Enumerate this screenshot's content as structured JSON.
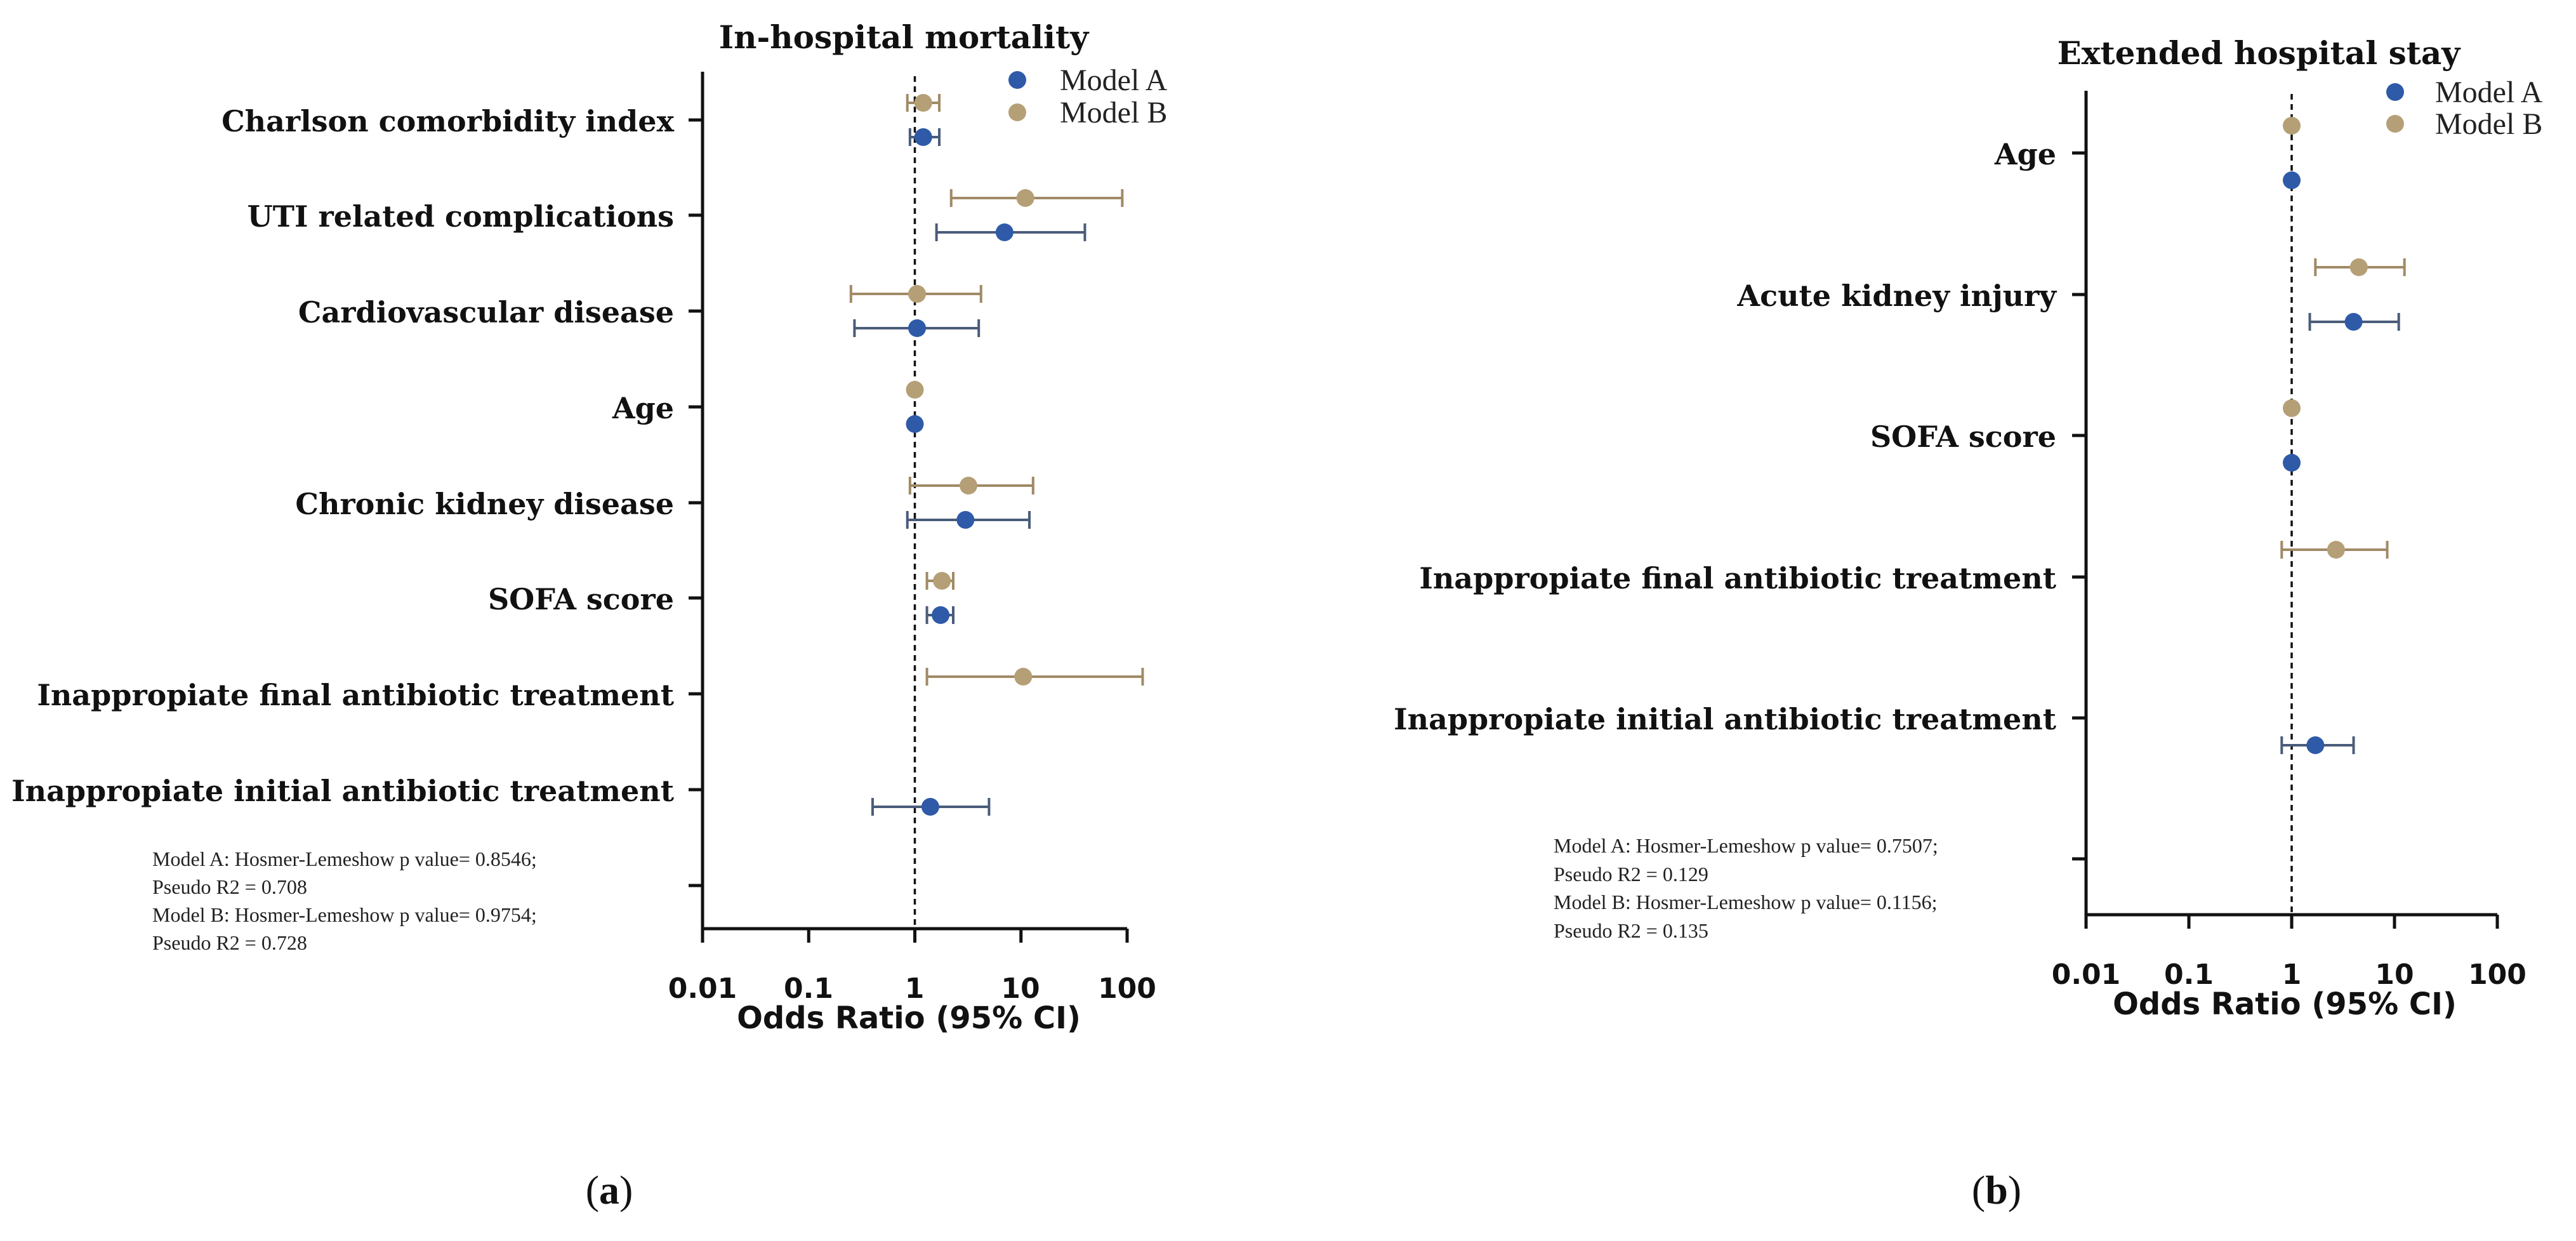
{
  "chart_data": [
    {
      "type": "forest",
      "panel_label_open": "(",
      "panel_label_letter": "a",
      "panel_label_close": ")",
      "title": "In-hospital mortality",
      "xlabel": "Odds Ratio (95% CI)",
      "x_scale": "log",
      "xlim": [
        0.01,
        100
      ],
      "x_ticks": [
        0.01,
        0.1,
        1,
        10,
        100
      ],
      "x_tick_labels": [
        "0.01",
        "0.1",
        "1",
        "10",
        "100"
      ],
      "reference_line": 1,
      "legend": [
        {
          "name": "Model A",
          "color": "#2e5aa8"
        },
        {
          "name": "Model B",
          "color": "#b59f76"
        }
      ],
      "categories": [
        "Charlson comorbidity index",
        "UTI related complications",
        "Cardiovascular disease",
        "Age",
        "Chronic kidney disease",
        "SOFA score",
        "Inappropiate final antibiotic treatment",
        "Inappropiate initial antibiotic treatment"
      ],
      "series": [
        {
          "name": "Model A",
          "color": "#2e5aa8",
          "err_color": "#4a5c7a",
          "points": [
            {
              "category": "Charlson comorbidity index",
              "or": 1.2,
              "low": 0.9,
              "high": 1.7
            },
            {
              "category": "UTI related complications",
              "or": 7.0,
              "low": 1.6,
              "high": 40.0
            },
            {
              "category": "Cardiovascular disease",
              "or": 1.05,
              "low": 0.27,
              "high": 4.0
            },
            {
              "category": "Age",
              "or": 1.0,
              "low": 0.98,
              "high": 1.03
            },
            {
              "category": "Chronic kidney disease",
              "or": 3.0,
              "low": 0.85,
              "high": 12.0
            },
            {
              "category": "SOFA score",
              "or": 1.75,
              "low": 1.3,
              "high": 2.3
            },
            {
              "category": "Inappropiate initial antibiotic treatment",
              "or": 1.4,
              "low": 0.4,
              "high": 5.0
            }
          ]
        },
        {
          "name": "Model B",
          "color": "#b59f76",
          "err_color": "#a08a66",
          "points": [
            {
              "category": "Charlson comorbidity index",
              "or": 1.2,
              "low": 0.85,
              "high": 1.7
            },
            {
              "category": "UTI related complications",
              "or": 11.0,
              "low": 2.2,
              "high": 90.0
            },
            {
              "category": "Cardiovascular disease",
              "or": 1.05,
              "low": 0.25,
              "high": 4.2
            },
            {
              "category": "Age",
              "or": 1.0,
              "low": 0.98,
              "high": 1.03
            },
            {
              "category": "Chronic kidney disease",
              "or": 3.2,
              "low": 0.9,
              "high": 13.0
            },
            {
              "category": "SOFA score",
              "or": 1.8,
              "low": 1.3,
              "high": 2.3
            },
            {
              "category": "Inappropiate final antibiotic treatment",
              "or": 10.5,
              "low": 1.3,
              "high": 140.0
            }
          ]
        }
      ],
      "notes": [
        "Model A: Hosmer-Lemeshow p value= 0.8546;",
        "Pseudo R2 = 0.708",
        "Model B: Hosmer-Lemeshow p value= 0.9754;",
        "Pseudo R2 = 0.728"
      ]
    },
    {
      "type": "forest",
      "panel_label_open": "(",
      "panel_label_letter": "b",
      "panel_label_close": ")",
      "title": "Extended hospital stay",
      "xlabel": "Odds Ratio (95% CI)",
      "x_scale": "log",
      "xlim": [
        0.01,
        100
      ],
      "x_ticks": [
        0.01,
        0.1,
        1,
        10,
        100
      ],
      "x_tick_labels": [
        "0.01",
        "0.1",
        "1",
        "10",
        "100"
      ],
      "reference_line": 1,
      "legend": [
        {
          "name": "Model A",
          "color": "#2e5aa8"
        },
        {
          "name": "Model B",
          "color": "#b59f76"
        }
      ],
      "categories": [
        "Age",
        "Acute kidney injury",
        "SOFA score",
        "Inappropiate final antibiotic treatment",
        "Inappropiate initial antibiotic treatment"
      ],
      "series": [
        {
          "name": "Model A",
          "color": "#2e5aa8",
          "err_color": "#4a5c7a",
          "points": [
            {
              "category": "Age",
              "or": 1.0,
              "low": 0.98,
              "high": 1.02
            },
            {
              "category": "Acute kidney injury",
              "or": 4.0,
              "low": 1.5,
              "high": 11.0
            },
            {
              "category": "SOFA score",
              "or": 1.0,
              "low": 0.98,
              "high": 1.03
            },
            {
              "category": "Inappropiate initial antibiotic treatment",
              "or": 1.7,
              "low": 0.8,
              "high": 4.0
            }
          ]
        },
        {
          "name": "Model B",
          "color": "#b59f76",
          "err_color": "#a08a66",
          "points": [
            {
              "category": "Age",
              "or": 1.0,
              "low": 0.98,
              "high": 1.02
            },
            {
              "category": "Acute kidney injury",
              "or": 4.5,
              "low": 1.7,
              "high": 12.5
            },
            {
              "category": "SOFA score",
              "or": 1.0,
              "low": 0.97,
              "high": 1.04
            },
            {
              "category": "Inappropiate final antibiotic treatment",
              "or": 2.7,
              "low": 0.8,
              "high": 8.5
            }
          ]
        }
      ],
      "notes": [
        "Model A: Hosmer-Lemeshow p value= 0.7507;",
        "Pseudo R2 = 0.129",
        "Model B: Hosmer-Lemeshow p value= 0.1156;",
        "Pseudo R2 = 0.135"
      ]
    }
  ]
}
